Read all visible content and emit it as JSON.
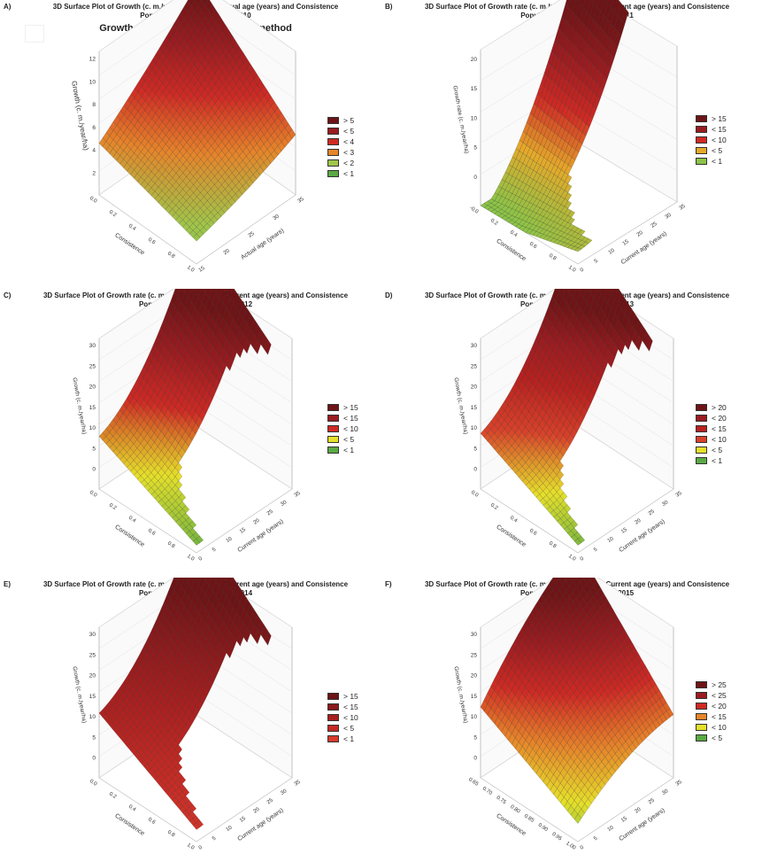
{
  "chart_data": [
    {
      "panel_letter": "A)",
      "type": "surface3d",
      "title": "3D Surface Plot of Growth (c. m./year/ha) against Actual age (years) and Consistence",
      "subtitle": "Populus alba database year 2010",
      "subtitle2": "Growth (c. m./year/ha) - quadratic method",
      "xlabel": "Actual age (years)",
      "ylabel": "Consistence",
      "zlabel": "Growth (c. m./year/ha)",
      "xticks": [
        "15",
        "20",
        "25",
        "30",
        "35"
      ],
      "yticks": [
        "0.0",
        "0.2",
        "0.4",
        "0.6",
        "0.8",
        "1.0"
      ],
      "zticks": [
        "2",
        "4",
        "6",
        "8",
        "10",
        "12"
      ],
      "zlim": [
        0,
        12
      ],
      "legend": [
        "> 5",
        "< 5",
        "< 4",
        "< 3",
        "< 2",
        "< 1"
      ],
      "colors": [
        "#6e1416",
        "#9a1c20",
        "#cf2a24",
        "#e6852a",
        "#9fc54a",
        "#5aaa44"
      ]
    },
    {
      "panel_letter": "B)",
      "type": "surface3d",
      "title": "3D Surface Plot of Growth rate (c. m./year/ha) against Current age (years) and Consistence",
      "subtitle": "Populus alba database- year 2011",
      "subtitle2": "Quadratic Method",
      "xlabel": "Current age (years)",
      "ylabel": "Consistence",
      "zlabel": "Growth rate (c. m./year/ha)",
      "xticks": [
        "0",
        "5",
        "10",
        "15",
        "20",
        "25",
        "30",
        "35"
      ],
      "yticks": [
        "-0.0",
        "0.2",
        "0.4",
        "0.6",
        "0.8",
        "1.0"
      ],
      "zticks": [
        "0",
        "5",
        "10",
        "15",
        "20"
      ],
      "zlim": [
        0,
        22
      ],
      "legend": [
        "> 15",
        "< 15",
        "< 10",
        "< 5",
        "< 1"
      ],
      "colors": [
        "#6e1416",
        "#9a1c20",
        "#cf2a24",
        "#e6a92a",
        "#8cc447"
      ]
    },
    {
      "panel_letter": "C)",
      "type": "surface3d",
      "title": "3D Surface Plot of Growth rate (c. m./year/ha) against Current age (years) and Consistence",
      "subtitle": "Populus alba database- year 2012",
      "subtitle2": "Quadratic Method",
      "xlabel": "Current age (years)",
      "ylabel": "Consistence",
      "zlabel": "Growth (c. m./year/ha)",
      "xticks": [
        "0",
        "5",
        "10",
        "15",
        "20",
        "25",
        "30",
        "35"
      ],
      "yticks": [
        "0.0",
        "0.2",
        "0.4",
        "0.6",
        "0.8",
        "1.0"
      ],
      "zticks": [
        "0",
        "5",
        "10",
        "15",
        "20",
        "25",
        "30"
      ],
      "zlim": [
        0,
        30
      ],
      "legend": [
        "> 15",
        "< 15",
        "< 10",
        "< 5",
        "< 1"
      ],
      "colors": [
        "#6e1416",
        "#9a1c20",
        "#cf2a24",
        "#e6e02a",
        "#5aaa44"
      ]
    },
    {
      "panel_letter": "D)",
      "type": "surface3d",
      "title": "3D Surface Plot of Growth rate (c. m./year/ha) against Current age (years) and Consistence",
      "subtitle": "Populus alba database- year 2013",
      "subtitle2": "Quadratic Method",
      "xlabel": "Current age (years)",
      "ylabel": "Consistence",
      "zlabel": "Growth (c. m./year/ha)",
      "xticks": [
        "0",
        "5",
        "10",
        "15",
        "20",
        "25",
        "30",
        "35"
      ],
      "yticks": [
        "0.0",
        "0.2",
        "0.4",
        "0.6",
        "0.8",
        "1.0"
      ],
      "zticks": [
        "0",
        "5",
        "10",
        "15",
        "20",
        "25",
        "30"
      ],
      "zlim": [
        0,
        30
      ],
      "legend": [
        "> 20",
        "< 20",
        "< 15",
        "< 10",
        "< 5",
        "< 1"
      ],
      "colors": [
        "#6e1416",
        "#9a1c20",
        "#b8221f",
        "#d8412a",
        "#e6e02a",
        "#5aaa44"
      ]
    },
    {
      "panel_letter": "E)",
      "type": "surface3d",
      "title": "3D Surface Plot of Growth rate (c. m./year/ha) against Current age (years) and Consistence",
      "subtitle": "Populus alba database- year 2014",
      "subtitle2": "Quadratic Method",
      "xlabel": "Current age (years)",
      "ylabel": "Consistence",
      "zlabel": "Growth (c. m./year/ha)",
      "xticks": [
        "0",
        "5",
        "10",
        "15",
        "20",
        "25",
        "30",
        "35"
      ],
      "yticks": [
        "0.0",
        "0.2",
        "0.4",
        "0.6",
        "0.8",
        "1.0"
      ],
      "zticks": [
        "0",
        "5",
        "10",
        "15",
        "20",
        "25",
        "30"
      ],
      "zlim": [
        0,
        30
      ],
      "legend": [
        "> 15",
        "< 15",
        "< 10",
        "< 5",
        "< 1"
      ],
      "colors": [
        "#6e1416",
        "#8a1a1c",
        "#a81f1f",
        "#c42a24",
        "#d63a2c"
      ]
    },
    {
      "panel_letter": "F)",
      "type": "surface3d",
      "title": "3D Surface Plot of Growth rate (c. m./year/ha) against Current age (years) and Consistence",
      "subtitle": "Populus alba database- year 2015",
      "subtitle2": "Quadratic Method",
      "xlabel": "Current age (years)",
      "ylabel": "Consistence",
      "zlabel": "Growth (c. m./year/ha)",
      "xticks": [
        "0",
        "5",
        "10",
        "15",
        "20",
        "25",
        "30",
        "35"
      ],
      "yticks": [
        "0.65",
        "0.70",
        "0.75",
        "0.80",
        "0.85",
        "0.90",
        "0.95",
        "1.00"
      ],
      "zticks": [
        "0",
        "5",
        "10",
        "15",
        "20",
        "25",
        "30"
      ],
      "zlim": [
        0,
        30
      ],
      "legend": [
        "> 25",
        "< 25",
        "< 20",
        "< 15",
        "< 10",
        "< 5"
      ],
      "colors": [
        "#6e1416",
        "#9a1c20",
        "#cf2a24",
        "#e6852a",
        "#e6e02a",
        "#5aaa44"
      ]
    }
  ]
}
